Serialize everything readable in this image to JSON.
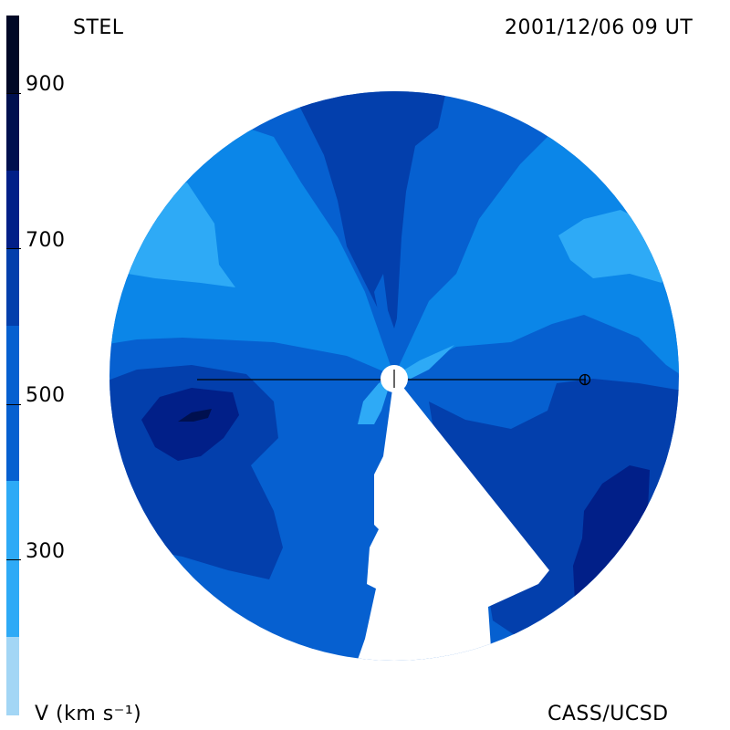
{
  "header": {
    "station": "STEL",
    "timestamp": "2001/12/06 09 UT"
  },
  "footer": {
    "unit_label": "V (km s⁻¹)",
    "credit": "CASS/UCSD"
  },
  "colorbar": {
    "ticks": [
      "900",
      "700",
      "500",
      "300"
    ],
    "levels": [
      {
        "from": 200,
        "to": 300,
        "color": "#a3d6f5"
      },
      {
        "from": 300,
        "to": 400,
        "color": "#2eaaf6"
      },
      {
        "from": 400,
        "to": 500,
        "color": "#0b86e8"
      },
      {
        "from": 500,
        "to": 600,
        "color": "#0660d0"
      },
      {
        "from": 600,
        "to": 700,
        "color": "#033fac"
      },
      {
        "from": 700,
        "to": 800,
        "color": "#011f88"
      },
      {
        "from": 800,
        "to": 900,
        "color": "#00104f"
      },
      {
        "from": 900,
        "to": 1000,
        "color": "#000826"
      }
    ]
  },
  "map": {
    "type": "solar-wind-velocity-synoptic-disk",
    "observer_symbol": "⊕",
    "sun_symbol": "+"
  }
}
